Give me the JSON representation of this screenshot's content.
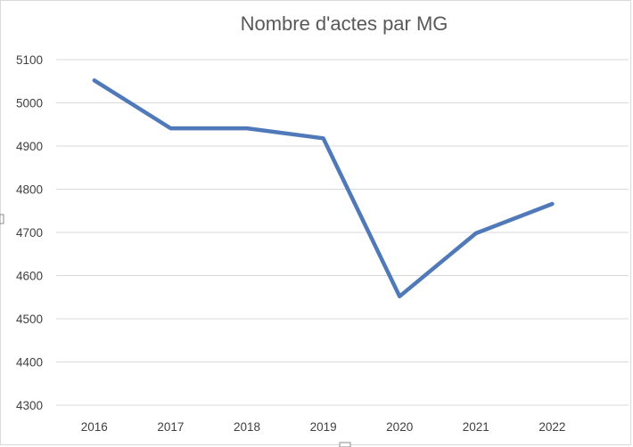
{
  "chart_data": {
    "type": "line",
    "title": "Nombre d'actes par MG",
    "xlabel": "",
    "ylabel": "",
    "categories": [
      "2016",
      "2017",
      "2018",
      "2019",
      "2020",
      "2021",
      "2022"
    ],
    "series": [
      {
        "values": [
          5052,
          4941,
          4941,
          4918,
          4552,
          4698,
          4766
        ],
        "color": "#4f79b8"
      }
    ],
    "ylim": [
      4300,
      5100
    ],
    "yticks": [
      "4300",
      "4400",
      "4500",
      "4600",
      "4700",
      "4800",
      "4900",
      "5000",
      "5100"
    ],
    "grid": true,
    "legend": "none"
  }
}
